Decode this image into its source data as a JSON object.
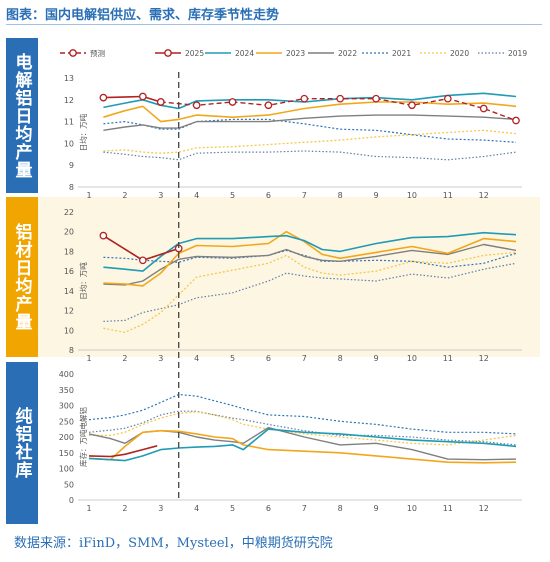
{
  "title": "图表：国内电解铝供应、需求、库存季节性走势",
  "source": "数据来源：iFinD，SMM，Mysteel，中粮期货研究院",
  "colors": {
    "2025": "#b22222",
    "2024": "#1f9bb5",
    "2023": "#f2a71b",
    "2022": "#7f7f7f",
    "2021": "#2e75b6",
    "2020": "#f2c94c",
    "2019": "#5b7fa6",
    "side_blue": "#2a6fb6",
    "side_orange": "#f0a500",
    "band_orange": "#fdf6e3"
  },
  "legend": [
    "预测",
    "2025",
    "2024",
    "2023",
    "2022",
    "2021",
    "2020",
    "2019"
  ],
  "chart_data": [
    {
      "type": "line",
      "side_label": "电解铝日均产量",
      "ylabel": "日均：万吨",
      "ylim": [
        8,
        13
      ],
      "yticks": [
        8,
        9,
        10,
        11,
        12,
        13
      ],
      "x_ticks": [
        1,
        2,
        3,
        4,
        5,
        6,
        7,
        8,
        9,
        10,
        11,
        12
      ],
      "forecast_line_x": 3.5,
      "series": [
        {
          "name": "预测",
          "x": [
            3,
            4,
            5,
            6,
            7,
            8,
            9,
            10,
            11,
            12,
            12.9
          ],
          "y": [
            11.9,
            11.75,
            11.9,
            11.75,
            12.05,
            12.05,
            12.05,
            11.75,
            12.05,
            11.6,
            11.05
          ]
        },
        {
          "name": "2025",
          "x": [
            1.4,
            2.5,
            3
          ],
          "y": [
            12.1,
            12.15,
            11.9
          ]
        },
        {
          "name": "2024",
          "x": [
            1.4,
            2,
            2.5,
            3,
            3.5,
            4,
            5,
            6,
            7,
            8,
            9,
            10,
            11,
            12,
            12.9
          ],
          "y": [
            11.65,
            11.85,
            12.0,
            11.75,
            11.6,
            11.95,
            12.0,
            12.0,
            11.9,
            12.05,
            12.1,
            12.0,
            12.2,
            12.3,
            12.15
          ]
        },
        {
          "name": "2023",
          "x": [
            1.4,
            2,
            2.5,
            3,
            3.5,
            4,
            5,
            6,
            7,
            8,
            9,
            10,
            11,
            12,
            12.9
          ],
          "y": [
            11.2,
            11.5,
            11.7,
            11.0,
            11.1,
            11.3,
            11.2,
            11.3,
            11.6,
            11.8,
            11.9,
            11.9,
            11.8,
            11.85,
            11.7
          ]
        },
        {
          "name": "2022",
          "x": [
            1.4,
            2,
            2.5,
            3,
            3.5,
            4,
            5,
            6,
            7,
            8,
            9,
            10,
            11,
            12,
            12.9
          ],
          "y": [
            10.6,
            10.75,
            10.85,
            10.7,
            10.7,
            11.0,
            11.0,
            11.0,
            11.15,
            11.25,
            11.3,
            11.3,
            11.25,
            11.2,
            11.1
          ]
        },
        {
          "name": "2021",
          "x": [
            1.4,
            2,
            2.5,
            3,
            3.5,
            4,
            5,
            6,
            7,
            8,
            9,
            10,
            11,
            12,
            12.9
          ],
          "y": [
            10.9,
            11.0,
            10.85,
            10.65,
            10.65,
            11.0,
            11.1,
            11.1,
            10.9,
            10.65,
            10.6,
            10.4,
            10.2,
            10.15,
            10.05
          ]
        },
        {
          "name": "2020",
          "x": [
            1.4,
            2,
            2.5,
            3,
            3.5,
            4,
            5,
            6,
            7,
            8,
            9,
            10,
            11,
            12,
            12.9
          ],
          "y": [
            9.65,
            9.7,
            9.6,
            9.55,
            9.6,
            9.8,
            9.85,
            9.95,
            10.05,
            10.15,
            10.3,
            10.4,
            10.5,
            10.6,
            10.45
          ]
        },
        {
          "name": "2019",
          "x": [
            1.4,
            2,
            2.5,
            3,
            3.5,
            4,
            5,
            6,
            7,
            8,
            9,
            10,
            11,
            12,
            12.9
          ],
          "y": [
            9.6,
            9.5,
            9.4,
            9.35,
            9.25,
            9.55,
            9.6,
            9.6,
            9.65,
            9.6,
            9.4,
            9.35,
            9.25,
            9.4,
            9.6
          ]
        }
      ]
    },
    {
      "type": "line",
      "side_label": "铝材日均产量",
      "ylabel": "日均：万吨",
      "ylim": [
        8,
        22
      ],
      "yticks": [
        8,
        10,
        12,
        14,
        16,
        18,
        20,
        22
      ],
      "x_ticks": [
        1,
        2,
        3,
        4,
        5,
        6,
        7,
        8,
        9,
        10,
        11,
        12
      ],
      "forecast_line_x": 3.5,
      "series": [
        {
          "name": "预测",
          "x": [
            1.4,
            2.5,
            3.5
          ],
          "y": [
            19.6,
            17.1,
            18.3
          ]
        },
        {
          "name": "2025",
          "x": [
            1.4,
            2.5,
            3.5
          ],
          "y": [
            19.6,
            17.1,
            18.3
          ]
        },
        {
          "name": "2024",
          "x": [
            1.4,
            2,
            2.5,
            3,
            3.5,
            4,
            5,
            6,
            6.5,
            7,
            7.5,
            8,
            9,
            10,
            11,
            12,
            12.9
          ],
          "y": [
            16.4,
            16.2,
            16.0,
            17.5,
            18.8,
            19.3,
            19.3,
            19.5,
            19.6,
            19.1,
            18.2,
            18.0,
            18.8,
            19.4,
            19.5,
            19.9,
            19.7
          ]
        },
        {
          "name": "2023",
          "x": [
            1.4,
            2,
            2.5,
            3,
            3.5,
            4,
            5,
            6,
            6.5,
            7,
            7.5,
            8,
            9,
            10,
            11,
            12,
            12.9
          ],
          "y": [
            14.8,
            14.7,
            14.5,
            15.8,
            17.8,
            18.6,
            18.5,
            18.8,
            20.0,
            19.0,
            17.7,
            17.3,
            17.9,
            18.5,
            17.8,
            19.3,
            19.0
          ]
        },
        {
          "name": "2022",
          "x": [
            1.4,
            2,
            2.5,
            3,
            3.5,
            4,
            5,
            6,
            6.5,
            7,
            7.5,
            8,
            9,
            10,
            11,
            12,
            12.9
          ],
          "y": [
            14.7,
            14.6,
            15.0,
            16.2,
            17.2,
            17.5,
            17.4,
            17.6,
            18.2,
            17.5,
            17.1,
            17.0,
            17.5,
            18.1,
            17.7,
            18.7,
            18.1
          ]
        },
        {
          "name": "2021",
          "x": [
            1.4,
            2,
            2.5,
            3,
            3.5,
            4,
            5,
            6,
            6.5,
            7,
            7.5,
            8,
            9,
            10,
            11,
            12,
            12.9
          ],
          "y": [
            17.4,
            17.3,
            17.1,
            17.0,
            16.9,
            17.4,
            17.3,
            17.6,
            18.1,
            17.6,
            17.0,
            17.0,
            17.1,
            17.0,
            16.4,
            16.8,
            17.8
          ]
        },
        {
          "name": "2020",
          "x": [
            1.4,
            2,
            2.5,
            3,
            3.5,
            4,
            5,
            6,
            6.5,
            7,
            7.5,
            8,
            9,
            10,
            11,
            12,
            12.9
          ],
          "y": [
            10.2,
            9.8,
            10.6,
            11.8,
            13.6,
            15.4,
            16.1,
            16.8,
            17.6,
            16.4,
            15.8,
            15.6,
            16.0,
            17.0,
            16.8,
            17.6,
            17.9
          ]
        },
        {
          "name": "2019",
          "x": [
            1.4,
            2,
            2.5,
            3,
            3.5,
            4,
            5,
            6,
            6.5,
            7,
            7.5,
            8,
            9,
            10,
            11,
            12,
            12.9
          ],
          "y": [
            10.9,
            11.0,
            11.8,
            12.2,
            12.6,
            13.3,
            13.8,
            15.0,
            15.8,
            15.5,
            15.3,
            15.2,
            15.0,
            15.7,
            15.3,
            16.2,
            16.8
          ]
        }
      ]
    },
    {
      "type": "line",
      "side_label": "纯铝社库",
      "ylabel": "库存：万吨电解铝",
      "ylim": [
        0,
        400
      ],
      "yticks": [
        0,
        50,
        100,
        150,
        200,
        250,
        300,
        350,
        400
      ],
      "x_ticks": [
        1,
        2,
        3,
        4,
        5,
        6,
        7,
        8,
        9,
        10,
        11,
        12
      ],
      "forecast_line_x": 3.5,
      "series": [
        {
          "name": "2025",
          "x": [
            1,
            1.6,
            2,
            2.5,
            2.9
          ],
          "y": [
            140,
            138,
            145,
            160,
            172
          ]
        },
        {
          "name": "2024",
          "x": [
            1,
            1.6,
            2,
            2.5,
            3,
            3.5,
            4,
            4.5,
            5,
            5.3,
            6,
            7,
            8,
            9,
            10,
            11,
            12,
            12.9
          ],
          "y": [
            132,
            128,
            125,
            140,
            160,
            165,
            168,
            170,
            175,
            160,
            225,
            215,
            210,
            200,
            190,
            185,
            180,
            170
          ]
        },
        {
          "name": "2023",
          "x": [
            1,
            1.6,
            2,
            2.5,
            3,
            3.5,
            4,
            4.5,
            5,
            5.3,
            6,
            7,
            8,
            9,
            10,
            11,
            12,
            12.9
          ],
          "y": [
            132,
            128,
            170,
            215,
            220,
            218,
            210,
            200,
            195,
            175,
            160,
            155,
            150,
            140,
            130,
            120,
            118,
            120
          ]
        },
        {
          "name": "2022",
          "x": [
            1,
            1.6,
            2,
            2.5,
            3,
            3.5,
            4,
            4.5,
            5,
            5.3,
            6,
            7,
            8,
            9,
            10,
            11,
            12,
            12.9
          ],
          "y": [
            210,
            195,
            180,
            215,
            220,
            215,
            200,
            190,
            185,
            180,
            230,
            200,
            175,
            180,
            160,
            130,
            128,
            130
          ]
        },
        {
          "name": "2021",
          "x": [
            1,
            1.6,
            2,
            2.5,
            3,
            3.5,
            4,
            4.5,
            5,
            5.3,
            6,
            7,
            8,
            9,
            10,
            11,
            12,
            12.9
          ],
          "y": [
            255,
            262,
            270,
            285,
            310,
            335,
            330,
            315,
            300,
            290,
            270,
            265,
            250,
            240,
            225,
            215,
            215,
            210
          ]
        },
        {
          "name": "2020",
          "x": [
            1,
            1.6,
            2,
            2.5,
            3,
            3.5,
            4,
            4.5,
            5,
            5.3,
            6,
            7,
            8,
            9,
            10,
            11,
            12,
            12.9
          ],
          "y": [
            205,
            205,
            215,
            240,
            260,
            275,
            280,
            270,
            255,
            240,
            225,
            210,
            200,
            190,
            180,
            175,
            190,
            205
          ]
        },
        {
          "name": "2019",
          "x": [
            1,
            1.6,
            2,
            2.5,
            3,
            3.5,
            4,
            4.5,
            5,
            5.3,
            6,
            7,
            8,
            9,
            10,
            11,
            12,
            12.9
          ],
          "y": [
            215,
            222,
            228,
            245,
            270,
            282,
            282,
            270,
            260,
            255,
            240,
            220,
            205,
            205,
            200,
            190,
            185,
            175
          ]
        }
      ]
    }
  ]
}
